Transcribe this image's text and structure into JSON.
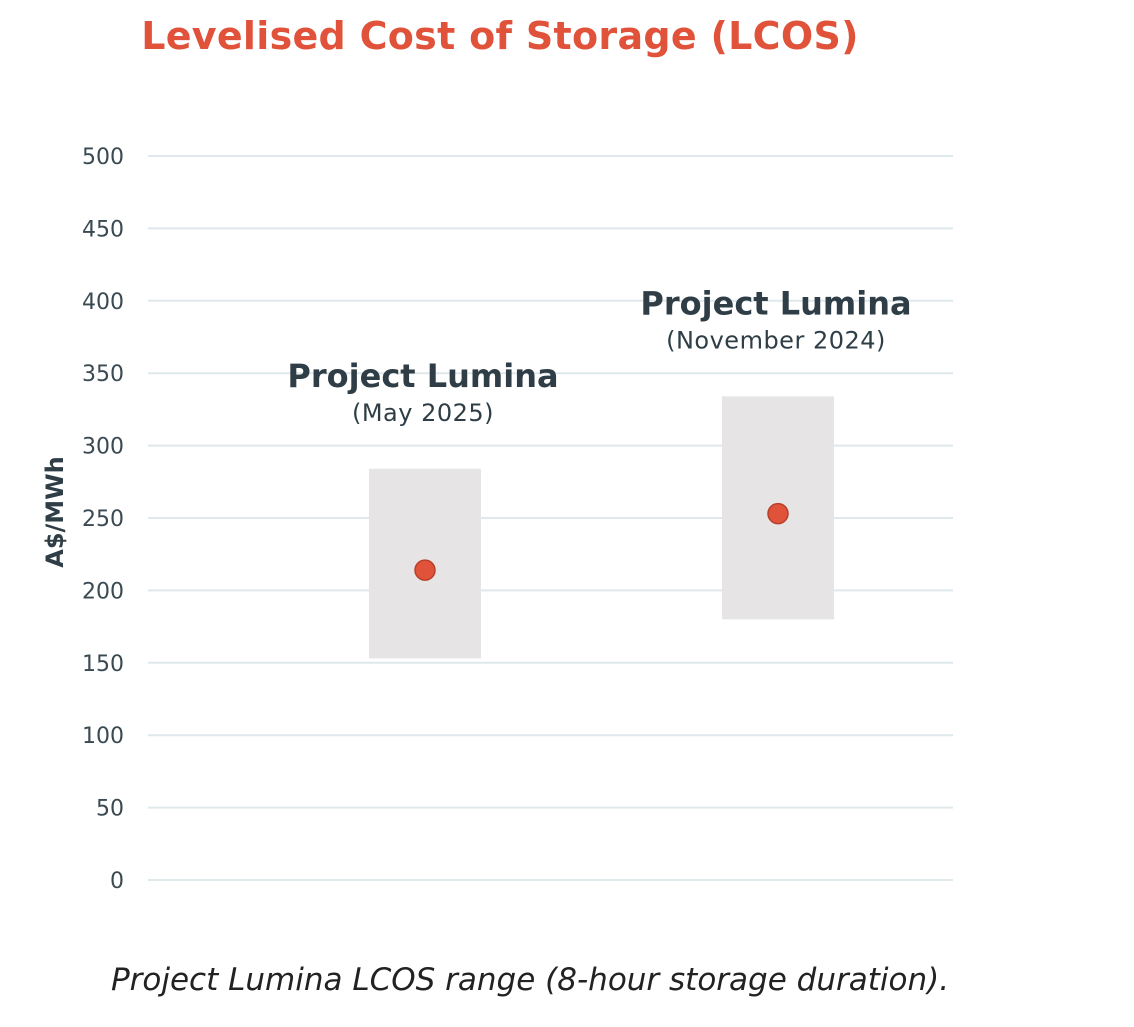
{
  "chart_data": {
    "type": "range",
    "title": "Levelised Cost of Storage (LCOS)",
    "ylabel": "A$/MWh",
    "xlabel": "",
    "ylim": [
      0,
      500
    ],
    "yticks": [
      0,
      50,
      100,
      150,
      200,
      250,
      300,
      350,
      400,
      450,
      500
    ],
    "grid": true,
    "categories": [
      {
        "name": "Project Lumina",
        "date": "(May 2025)",
        "low": 153,
        "high": 284,
        "point": 214
      },
      {
        "name": "Project Lumina",
        "date": "(November 2024)",
        "low": 180,
        "high": 334,
        "point": 253
      }
    ]
  },
  "caption": "Project Lumina LCOS range (8-hour storage duration).",
  "colors": {
    "title": "#e0533a",
    "point": "#e0533a",
    "point_stroke": "#b8402b",
    "range": "#e6e4e5",
    "grid": "#dfe8ea",
    "label": "#2f3e46",
    "tick": "#3a4a52"
  }
}
